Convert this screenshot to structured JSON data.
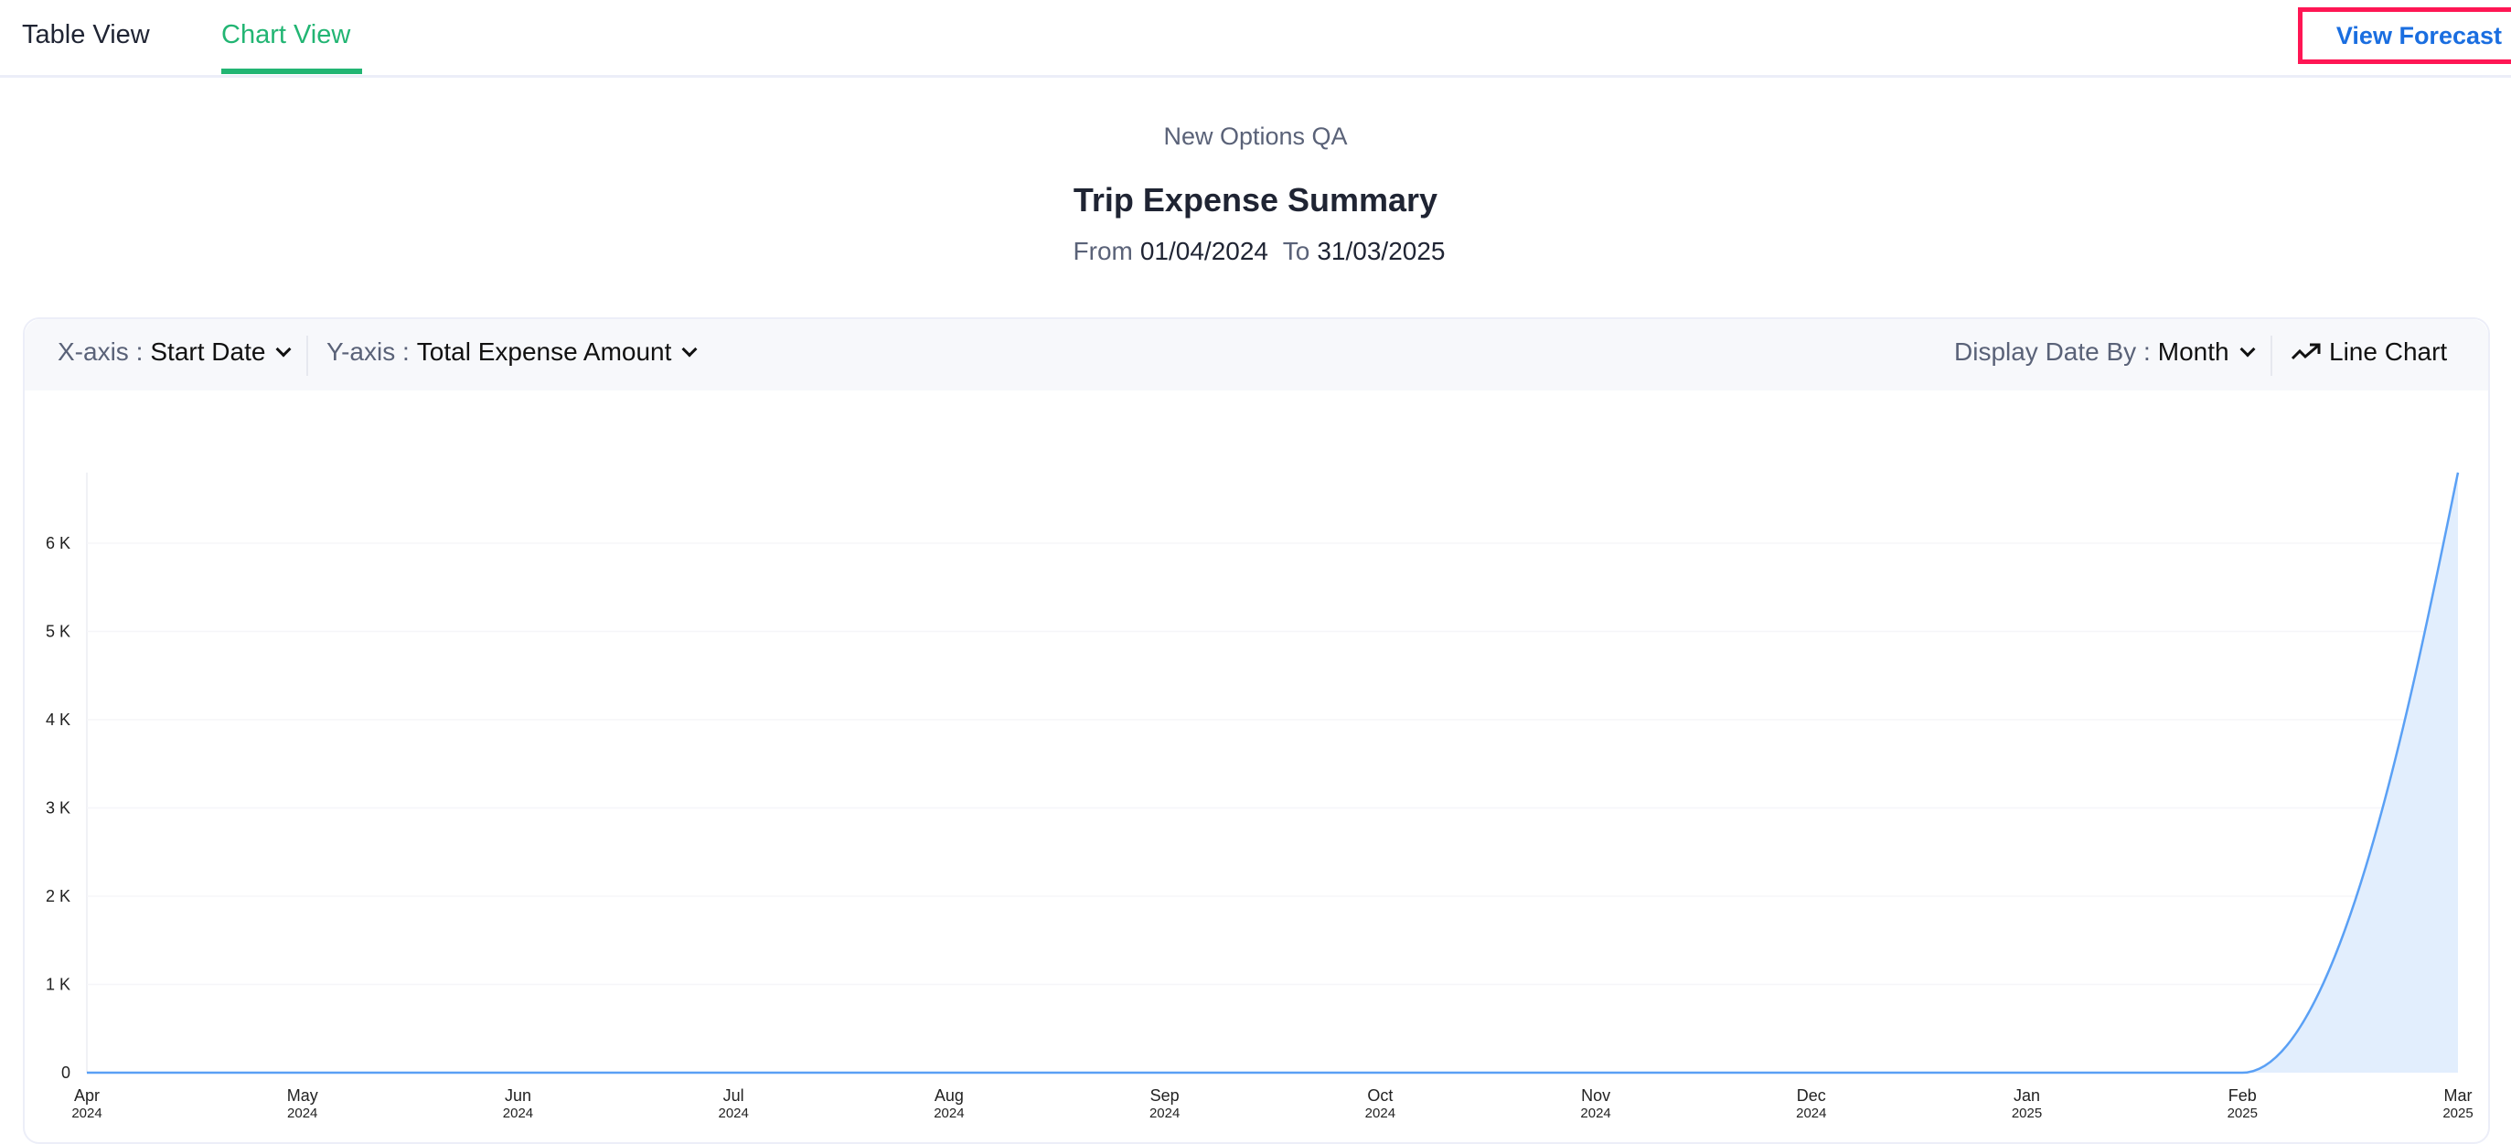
{
  "tabs": [
    {
      "label": "Table View",
      "active": false
    },
    {
      "label": "Chart View",
      "active": true
    }
  ],
  "view_forecast_label": "View Forecast",
  "colors": {
    "accent": "#22b573",
    "link": "#1a6ee0",
    "highlight": "#ff1654",
    "series_line": "#5aa0f5",
    "series_fill": "#e2eefd"
  },
  "report": {
    "org": "New Options QA",
    "title": "Trip Expense Summary",
    "from_label": "From",
    "from": "01/04/2024",
    "to_label": "To",
    "to": "31/03/2025"
  },
  "toolbar": {
    "x_label": "X-axis :",
    "x_value": "Start Date",
    "y_label": "Y-axis :",
    "y_value": "Total Expense Amount",
    "date_label": "Display Date By :",
    "date_value": "Month",
    "chart_type_icon": "trending-up-icon",
    "chart_type": "Line Chart"
  },
  "chart_data": {
    "type": "area",
    "categories": [
      "Apr 2024",
      "May 2024",
      "Jun 2024",
      "Jul 2024",
      "Aug 2024",
      "Sep 2024",
      "Oct 2024",
      "Nov 2024",
      "Dec 2024",
      "Jan 2025",
      "Feb 2025",
      "Mar 2025"
    ],
    "x_ticks": [
      [
        "Apr",
        "2024"
      ],
      [
        "May",
        "2024"
      ],
      [
        "Jun",
        "2024"
      ],
      [
        "Jul",
        "2024"
      ],
      [
        "Aug",
        "2024"
      ],
      [
        "Sep",
        "2024"
      ],
      [
        "Oct",
        "2024"
      ],
      [
        "Nov",
        "2024"
      ],
      [
        "Dec",
        "2024"
      ],
      [
        "Jan",
        "2025"
      ],
      [
        "Feb",
        "2025"
      ],
      [
        "Mar",
        "2025"
      ]
    ],
    "values": [
      0,
      0,
      0,
      0,
      0,
      0,
      0,
      0,
      0,
      0,
      0,
      6800
    ],
    "y_ticks": [
      "0",
      "1 K",
      "2 K",
      "3 K",
      "4 K",
      "5 K",
      "6 K"
    ],
    "y_tick_values": [
      0,
      1000,
      2000,
      3000,
      4000,
      5000,
      6000
    ],
    "ylim": [
      0,
      6800
    ],
    "grid": true,
    "xlabel": "",
    "ylabel": ""
  }
}
